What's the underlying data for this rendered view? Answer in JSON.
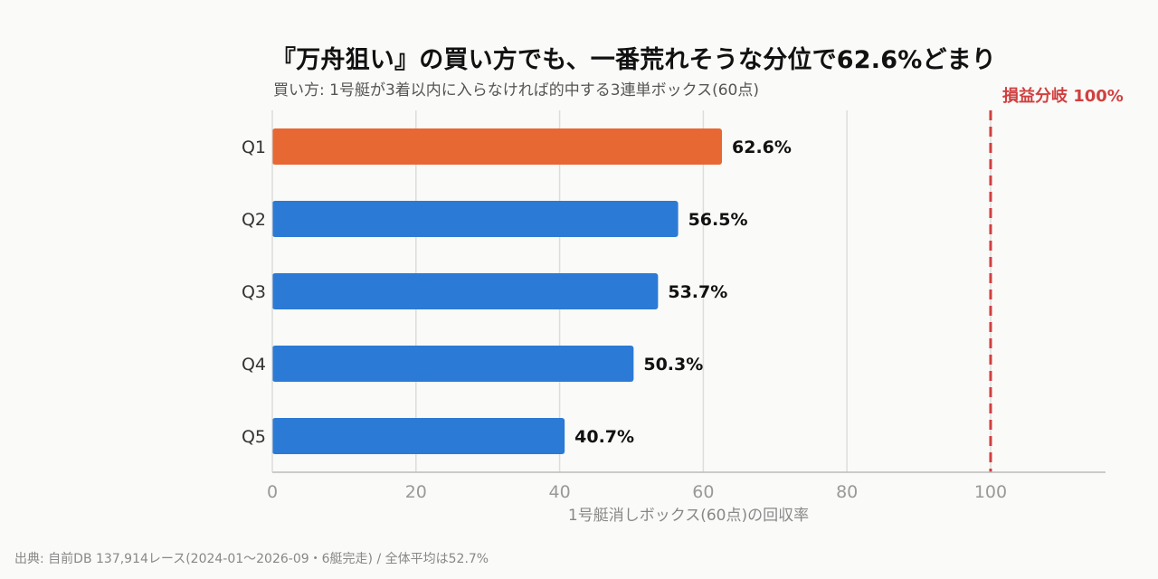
{
  "header": {
    "title": "『万舟狙い』の買い方でも、一番荒れそうな分位で62.6%どまり",
    "subtitle": "買い方: 1号艇が3着以内に入らなければ的中する3連単ボックス(60点)"
  },
  "footer": {
    "source": "出典: 自前DB 137,914レース(2024-01〜2026-09・6艇完走) / 全体平均は52.7%"
  },
  "chart_data": {
    "type": "bar",
    "orientation": "horizontal",
    "categories": [
      "Q1",
      "Q2",
      "Q3",
      "Q4",
      "Q5"
    ],
    "values": [
      62.6,
      56.5,
      53.7,
      50.3,
      40.7
    ],
    "value_labels": [
      "62.6%",
      "56.5%",
      "53.7%",
      "50.3%",
      "40.7%"
    ],
    "xlabel": "1号艇消しボックス(60点)の回収率",
    "ylabel": "",
    "xlim": [
      0,
      116
    ],
    "xticks": [
      0,
      20,
      40,
      60,
      80,
      100
    ],
    "grid": true,
    "reference_line": {
      "value": 100,
      "label": "損益分岐 100%",
      "color": "#d04040",
      "style": "dashed"
    },
    "colors": {
      "highlight": "#e86833",
      "default": "#2b7ad6"
    },
    "highlight_index": 0
  }
}
